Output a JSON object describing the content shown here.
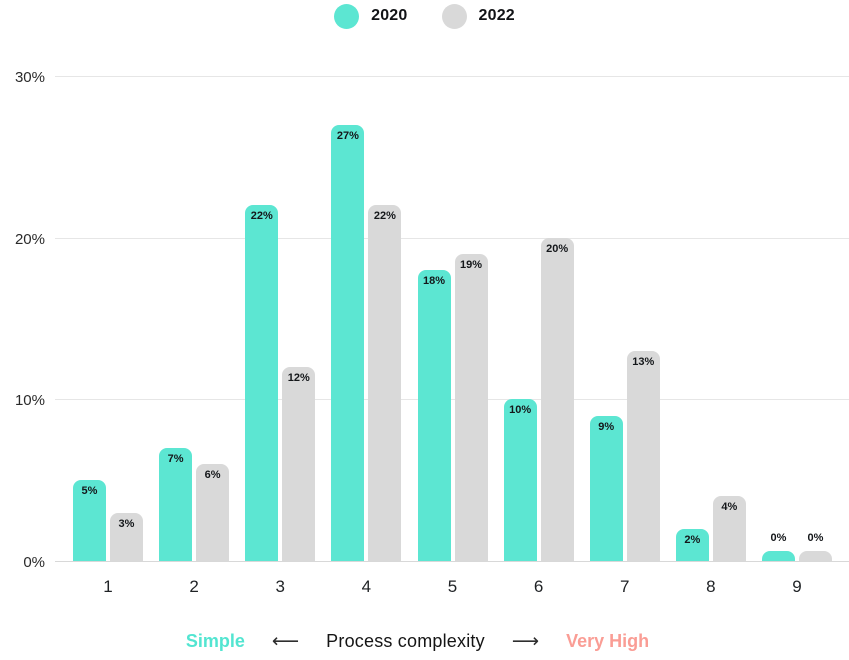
{
  "colors": {
    "series_2020": "#5CE6D2",
    "series_2022": "#D9D9D9",
    "bar_label": "#14171a",
    "grid": "#e6e6e6",
    "simple_label": "#53E5D1",
    "very_high_label": "#FA9D95"
  },
  "legend": {
    "items": [
      {
        "label": "2020",
        "color": "#5CE6D2"
      },
      {
        "label": "2022",
        "color": "#D9D9D9"
      }
    ]
  },
  "y_axis": {
    "tick_labels": [
      "30%",
      "20%",
      "10%",
      "0%"
    ]
  },
  "footer": {
    "left_label": "Simple",
    "left_arrow": "⟵",
    "axis_title": "Process complexity",
    "right_arrow": "⟶",
    "right_label": "Very High"
  },
  "chart_data": {
    "type": "bar",
    "title": "",
    "xlabel": "Process complexity",
    "ylabel": "",
    "categories": [
      "1",
      "2",
      "3",
      "4",
      "5",
      "6",
      "7",
      "8",
      "9"
    ],
    "series": [
      {
        "name": "2020",
        "color": "#5CE6D2",
        "values": [
          5,
          7,
          22,
          27,
          18,
          10,
          9,
          2,
          0
        ],
        "labels": [
          "5%",
          "7%",
          "22%",
          "27%",
          "18%",
          "10%",
          "9%",
          "2%",
          "0%"
        ]
      },
      {
        "name": "2022",
        "color": "#D9D9D9",
        "values": [
          3,
          6,
          12,
          22,
          19,
          20,
          13,
          4,
          0
        ],
        "labels": [
          "3%",
          "6%",
          "12%",
          "22%",
          "19%",
          "20%",
          "13%",
          "4%",
          "0%"
        ]
      }
    ],
    "ylim": [
      0,
      30
    ],
    "y_ticks": [
      30,
      20,
      10,
      0
    ],
    "grid": "horizontal",
    "legend_position": "top",
    "x_scale_note": "1 = Simple, 9 = Very High"
  }
}
